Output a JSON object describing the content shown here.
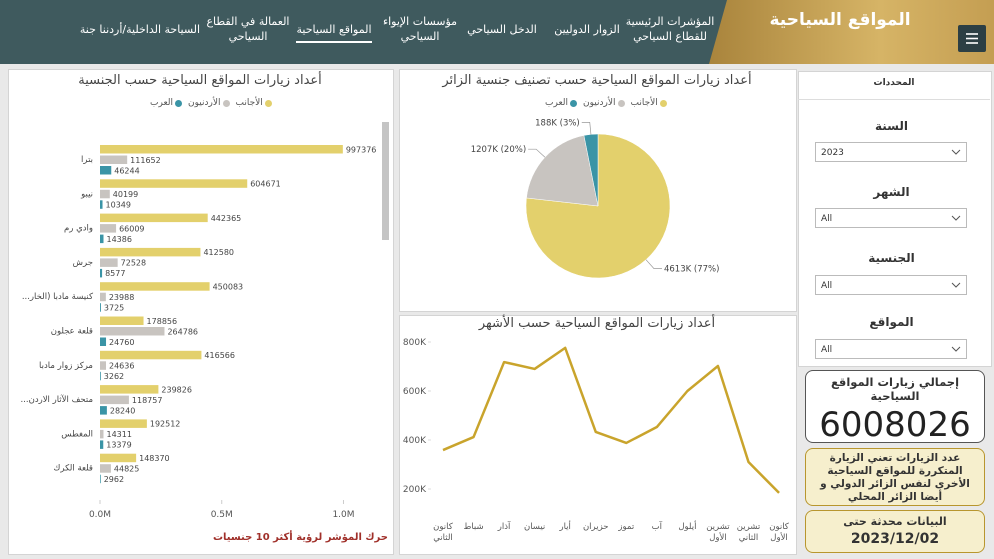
{
  "header": {
    "title": "المواقع السياحية",
    "tabs": [
      "المؤشرات الرئيسية للقطاع السياحي",
      "الزوار الدوليين",
      "الدخل السياحي",
      "مؤسسات الإيواء السياحي",
      "المواقع السياحية",
      "العمالة في القطاع السياحي",
      "السياحة الداخلية/أردننا جنة"
    ]
  },
  "filters": {
    "title": "المحددات",
    "items": [
      {
        "label": "السنة",
        "value": "2023"
      },
      {
        "label": "الشهر",
        "value": "All"
      },
      {
        "label": "الجنسية",
        "value": "All"
      },
      {
        "label": "المواقع",
        "value": "All"
      }
    ]
  },
  "kpi": {
    "title": "إجمالي زيارات المواقع السياحية",
    "value": 6008026
  },
  "note": "عدد الزيارات تعني الزيارة المتكررة للمواقع السياحية الأخرى لنفس الزائر الدولي و أيضا الزائر المحلي",
  "update": {
    "title": "البيانات محدثة حتى",
    "date": "2023/12/02"
  },
  "chart_data": [
    {
      "type": "bar",
      "orientation": "horizontal",
      "title": "أعداد زيارات المواقع السياحية حسب الجنسية",
      "categories": [
        "بترا",
        "نيبو",
        "وادي رم",
        "جرش",
        "كنيسة مادبا (الخار...",
        "قلعة عجلون",
        "مركز زوار مادبا",
        "متحف الآثار الاردن...",
        "المغطس",
        "قلعة الكرك"
      ],
      "series": [
        {
          "name": "الأجانب",
          "color": "#e3d06c",
          "values": [
            997376,
            604671,
            442365,
            412580,
            450083,
            178856,
            416566,
            239826,
            192512,
            148370
          ]
        },
        {
          "name": "الأردنيون",
          "color": "#c8c4c0",
          "values": [
            111652,
            40199,
            66009,
            72528,
            23988,
            264786,
            24636,
            118757,
            14311,
            44825
          ]
        },
        {
          "name": "العرب",
          "color": "#3a94a6",
          "values": [
            46244,
            10349,
            14386,
            8577,
            3725,
            24760,
            3262,
            28240,
            13379,
            2962
          ]
        }
      ],
      "xlim": [
        0,
        1150000
      ],
      "xticks": [
        {
          "value": 0,
          "label": "0.0M"
        },
        {
          "value": 500000,
          "label": "0.5M"
        },
        {
          "value": 1000000,
          "label": "1.0M"
        }
      ],
      "annotation": "حرك المؤشر لرؤية أكثر 10 جنسيات"
    },
    {
      "type": "pie",
      "title": "أعداد زيارات المواقع السياحية حسب تصنيف جنسية الزائر",
      "categories": [
        "الأجانب",
        "الأردنيون",
        "العرب"
      ],
      "values": [
        4613,
        1207,
        188
      ],
      "value_labels": [
        "4613K (77%)",
        "1207K (20%)",
        "188K (3%)"
      ],
      "colors": [
        "#e3d06c",
        "#c8c4c0",
        "#3a94a6"
      ]
    },
    {
      "type": "line",
      "title": "أعداد زيارات المواقع السياحية حسب الأشهر",
      "categories": [
        "كانون الثاني",
        "شباط",
        "آذار",
        "نيسان",
        "أيار",
        "حزيران",
        "تموز",
        "آب",
        "أيلول",
        "تشرين الأول",
        "تشرين الثاني",
        "كانون الأول"
      ],
      "values": [
        359000,
        412000,
        718000,
        690000,
        776000,
        433000,
        388000,
        453000,
        600000,
        702000,
        310000,
        184000
      ],
      "color": "#c9a42c",
      "ylim": [
        120000,
        820000
      ],
      "yticks": [
        {
          "value": 200000,
          "label": "200K"
        },
        {
          "value": 400000,
          "label": "400K"
        },
        {
          "value": 600000,
          "label": "600K"
        },
        {
          "value": 800000,
          "label": "800K"
        }
      ]
    }
  ]
}
